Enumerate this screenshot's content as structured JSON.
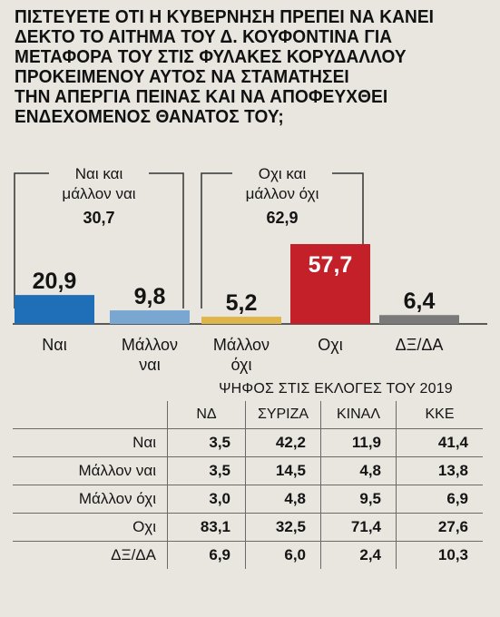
{
  "question": "ΠΙΣΤΕΥΕΤΕ ΟΤΙ Η ΚΥΒΕΡΝΗΣΗ ΠΡΕΠΕΙ ΝΑ ΚΑΝΕΙ\nΔΕΚΤΟ ΤΟ ΑΙΤΗΜΑ ΤΟΥ Δ. ΚΟΥΦΟΝΤΙΝΑ ΓΙΑ\nΜΕΤΑΦΟΡΑ ΤΟΥ ΣΤΙΣ ΦΥΛΑΚΕΣ ΚΟΡΥΔΑΛΛΟΥ\nΠΡΟΚΕΙΜΕΝΟΥ ΑΥΤΟΣ  ΝΑ ΣΤΑΜΑΤΗΣΕΙ\nΤΗΝ ΑΠΕΡΓΙΑ ΠΕΙΝΑΣ ΚΑΙ ΝΑ ΑΠΟΦΕΥΧΘΕΙ\nΕΝΔΕΧΟΜΕΝΟΣ ΘΑΝΑΤΟΣ ΤΟΥ;",
  "chart_data": [
    {
      "type": "bar",
      "categories": [
        "Ναι",
        "Μάλλον ναι",
        "Μάλλον όχι",
        "Οχι",
        "ΔΞ/ΔΑ"
      ],
      "category_lines": [
        [
          "Ναι"
        ],
        [
          "Μάλλον",
          "ναι"
        ],
        [
          "Μάλλον",
          "όχι"
        ],
        [
          "Οχι"
        ],
        [
          "ΔΞ/ΔΑ"
        ]
      ],
      "values": [
        20.9,
        9.8,
        5.2,
        57.7,
        6.4
      ],
      "value_labels": [
        "20,9",
        "9,8",
        "5,2",
        "57,7",
        "6,4"
      ],
      "colors": [
        "#1f6fb8",
        "#7aa6d2",
        "#e0b54a",
        "#c4202a",
        "#7a7a7a"
      ],
      "groups": [
        {
          "lines": [
            "Ναι και",
            "μάλλον ναι"
          ],
          "value": 30.7,
          "value_label": "30,7",
          "members": [
            0,
            1
          ]
        },
        {
          "lines": [
            "Οχι και",
            "μάλλον όχι"
          ],
          "value": 62.9,
          "value_label": "62,9",
          "members": [
            2,
            3
          ]
        }
      ],
      "ylim": [
        0,
        57.7
      ]
    },
    {
      "type": "table",
      "title": "ΨΗΦΟΣ ΣΤΙΣ ΕΚΛΟΓΕΣ ΤΟΥ 2019",
      "columns": [
        "ΝΔ",
        "ΣΥΡΙΖΑ",
        "ΚΙΝΑΛ",
        "ΚΚΕ"
      ],
      "rows": [
        {
          "label": "Ναι",
          "values": [
            "3,5",
            "42,2",
            "11,9",
            "41,4"
          ]
        },
        {
          "label": "Μάλλον ναι",
          "values": [
            "3,5",
            "14,5",
            "4,8",
            "13,8"
          ]
        },
        {
          "label": "Μάλλον όχι",
          "values": [
            "3,0",
            "4,8",
            "9,5",
            "6,9"
          ]
        },
        {
          "label": "Οχι",
          "values": [
            "83,1",
            "32,5",
            "71,4",
            "27,6"
          ]
        },
        {
          "label": "ΔΞ/ΔΑ",
          "values": [
            "6,9",
            "6,0",
            "2,4",
            "10,3"
          ]
        }
      ]
    }
  ]
}
